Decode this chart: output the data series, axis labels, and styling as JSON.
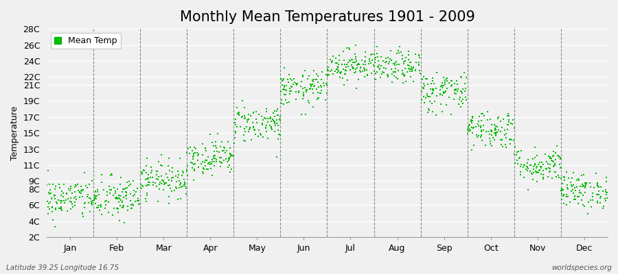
{
  "title": "Monthly Mean Temperatures 1901 - 2009",
  "ylabel": "Temperature",
  "xlabel_labels": [
    "Jan",
    "Feb",
    "Mar",
    "Apr",
    "May",
    "Jun",
    "Jul",
    "Aug",
    "Sep",
    "Oct",
    "Nov",
    "Dec"
  ],
  "ytick_labels": [
    "2C",
    "4C",
    "6C",
    "8C",
    "9C",
    "11C",
    "13C",
    "15C",
    "17C",
    "19C",
    "21C",
    "22C",
    "24C",
    "26C",
    "28C"
  ],
  "ytick_values": [
    2,
    4,
    6,
    8,
    9,
    11,
    13,
    15,
    17,
    19,
    21,
    22,
    24,
    26,
    28
  ],
  "ylim": [
    2,
    28
  ],
  "dot_color": "#00bb00",
  "bg_color": "#f0f0f0",
  "plot_bg_color": "#f0f0f0",
  "legend_label": "Mean Temp",
  "footer_left": "Latitude 39.25 Longitude 16.75",
  "footer_right": "worldspecies.org",
  "title_fontsize": 15,
  "axis_fontsize": 9,
  "n_years": 109,
  "monthly_means": [
    6.8,
    6.8,
    9.2,
    12.0,
    16.2,
    20.5,
    23.5,
    23.2,
    20.2,
    15.5,
    11.0,
    7.8
  ],
  "monthly_stds": [
    1.3,
    1.4,
    1.1,
    1.1,
    1.2,
    1.1,
    1.0,
    1.0,
    1.3,
    1.2,
    1.1,
    1.1
  ],
  "seed": 42
}
